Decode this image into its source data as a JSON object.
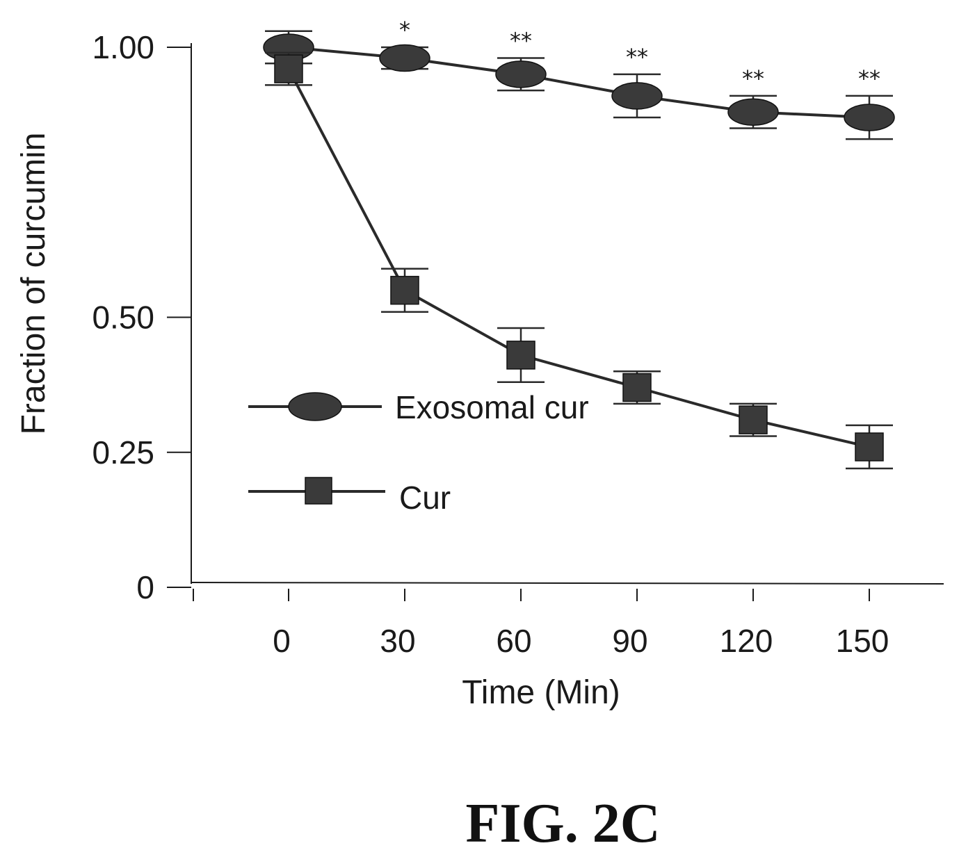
{
  "figure_label": "FIG. 2C",
  "chart_data": {
    "type": "line",
    "title": "",
    "xlabel": "Time (Min)",
    "ylabel": "Fraction of curcumin",
    "x": [
      0,
      30,
      60,
      90,
      120,
      150
    ],
    "x_tick_labels": [
      "0",
      "30",
      "60",
      "90",
      "120",
      "150"
    ],
    "y_ticks": [
      0,
      0.25,
      0.5,
      1.0
    ],
    "y_tick_labels": [
      "0",
      "0.25",
      "0.50",
      "1.00"
    ],
    "ylim": [
      0,
      1.0
    ],
    "legend_position": "center-left",
    "series": [
      {
        "name": "Exosomal cur",
        "marker": "ellipse",
        "values": [
          1.0,
          0.98,
          0.95,
          0.91,
          0.88,
          0.87
        ],
        "error": [
          0.03,
          0.02,
          0.03,
          0.04,
          0.03,
          0.04
        ],
        "significance": [
          "",
          "*",
          "**",
          "**",
          "**",
          "**"
        ]
      },
      {
        "name": "Cur",
        "marker": "square",
        "values": [
          0.96,
          0.55,
          0.43,
          0.37,
          0.31,
          0.26
        ],
        "error": [
          0.03,
          0.04,
          0.05,
          0.03,
          0.03,
          0.04
        ],
        "significance": [
          "",
          "",
          "",
          "",
          "",
          ""
        ]
      }
    ]
  }
}
